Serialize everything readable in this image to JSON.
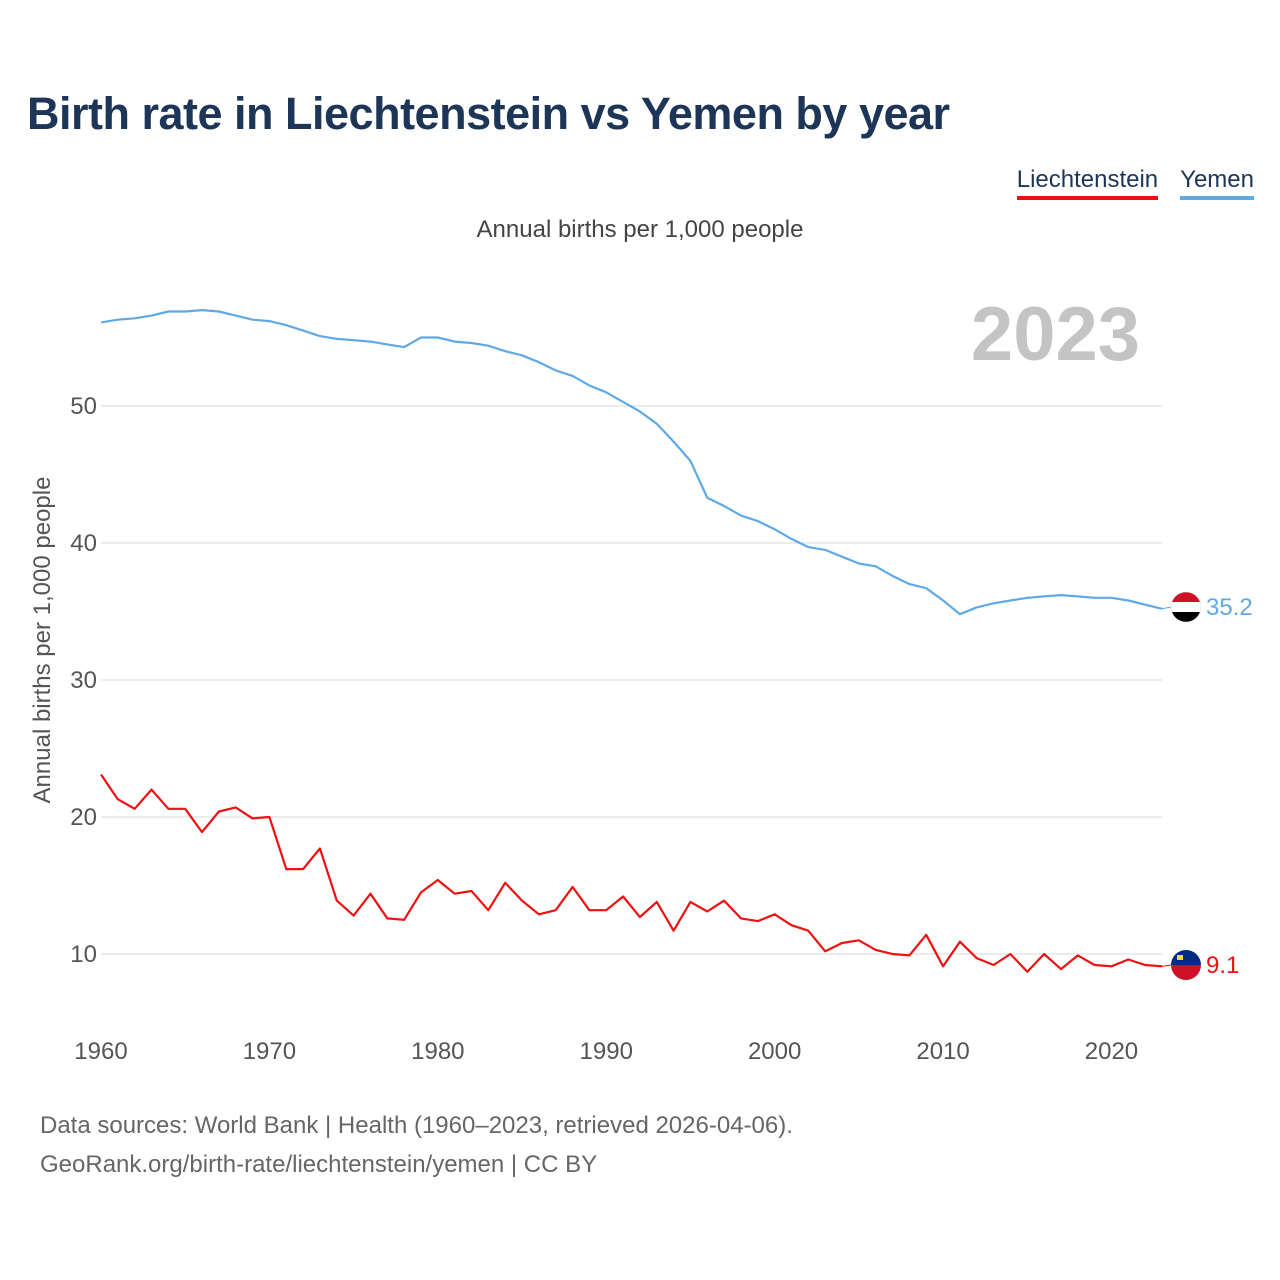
{
  "title": "Birth rate in Liechtenstein vs Yemen by year",
  "subtitle": "Annual births per 1,000 people",
  "legend": [
    {
      "label": "Liechtenstein",
      "color": "#ee1111"
    },
    {
      "label": "Yemen",
      "color": "#5ea9e6"
    }
  ],
  "year_label": "2023",
  "footer": {
    "line1": "Data sources: World Bank | Health (1960–2023, retrieved 2026-04-06).",
    "line2": "GeoRank.org/birth-rate/liechtenstein/yemen | CC BY"
  },
  "chart_data": {
    "type": "line",
    "title": "Birth rate in Liechtenstein vs Yemen by year",
    "ylabel": "Annual births per 1,000 people",
    "xlabel": "",
    "xlim": [
      1960,
      2023
    ],
    "ylim": [
      5,
      58
    ],
    "x_ticks": [
      1960,
      1970,
      1980,
      1990,
      2000,
      2010,
      2020
    ],
    "y_ticks": [
      10,
      20,
      30,
      40,
      50
    ],
    "grid": true,
    "x": [
      1960,
      1961,
      1962,
      1963,
      1964,
      1965,
      1966,
      1967,
      1968,
      1969,
      1970,
      1971,
      1972,
      1973,
      1974,
      1975,
      1976,
      1977,
      1978,
      1979,
      1980,
      1981,
      1982,
      1983,
      1984,
      1985,
      1986,
      1987,
      1988,
      1989,
      1990,
      1991,
      1992,
      1993,
      1994,
      1995,
      1996,
      1997,
      1998,
      1999,
      2000,
      2001,
      2002,
      2003,
      2004,
      2005,
      2006,
      2007,
      2008,
      2009,
      2010,
      2011,
      2012,
      2013,
      2014,
      2015,
      2016,
      2017,
      2018,
      2019,
      2020,
      2021,
      2022,
      2023
    ],
    "series": [
      {
        "name": "Yemen",
        "color": "#5ea9e6",
        "end_label": "35.2",
        "values": [
          56.1,
          56.3,
          56.4,
          56.6,
          56.9,
          56.9,
          57.0,
          56.9,
          56.6,
          56.3,
          56.2,
          55.9,
          55.5,
          55.1,
          54.9,
          54.8,
          54.7,
          54.5,
          54.3,
          55.0,
          55.0,
          54.7,
          54.6,
          54.4,
          54.0,
          53.7,
          53.2,
          52.6,
          52.2,
          51.5,
          51.0,
          50.3,
          49.6,
          48.7,
          47.4,
          46.0,
          43.3,
          42.7,
          42.0,
          41.6,
          41.0,
          40.3,
          39.7,
          39.5,
          39.0,
          38.5,
          38.3,
          37.6,
          37.0,
          36.7,
          35.8,
          34.8,
          35.3,
          35.6,
          35.8,
          36.0,
          36.1,
          36.2,
          36.1,
          36.0,
          36.0,
          35.8,
          35.5,
          35.2
        ]
      },
      {
        "name": "Liechtenstein",
        "color": "#ee1111",
        "end_label": "9.1",
        "values": [
          23.1,
          21.3,
          20.6,
          22.0,
          20.6,
          20.6,
          18.9,
          20.4,
          20.7,
          19.9,
          20.0,
          16.2,
          16.2,
          17.7,
          13.9,
          12.8,
          14.4,
          12.6,
          12.5,
          14.5,
          15.4,
          14.4,
          14.6,
          13.2,
          15.2,
          13.9,
          12.9,
          13.2,
          14.9,
          13.2,
          13.2,
          14.2,
          12.7,
          13.8,
          11.7,
          13.8,
          13.1,
          13.9,
          12.6,
          12.4,
          12.9,
          12.1,
          11.7,
          10.2,
          10.8,
          11.0,
          10.3,
          10.0,
          9.9,
          11.4,
          9.1,
          10.9,
          9.7,
          9.2,
          10.0,
          8.7,
          10.0,
          8.9,
          9.9,
          9.2,
          9.1,
          9.6,
          9.2,
          9.1
        ]
      }
    ]
  }
}
